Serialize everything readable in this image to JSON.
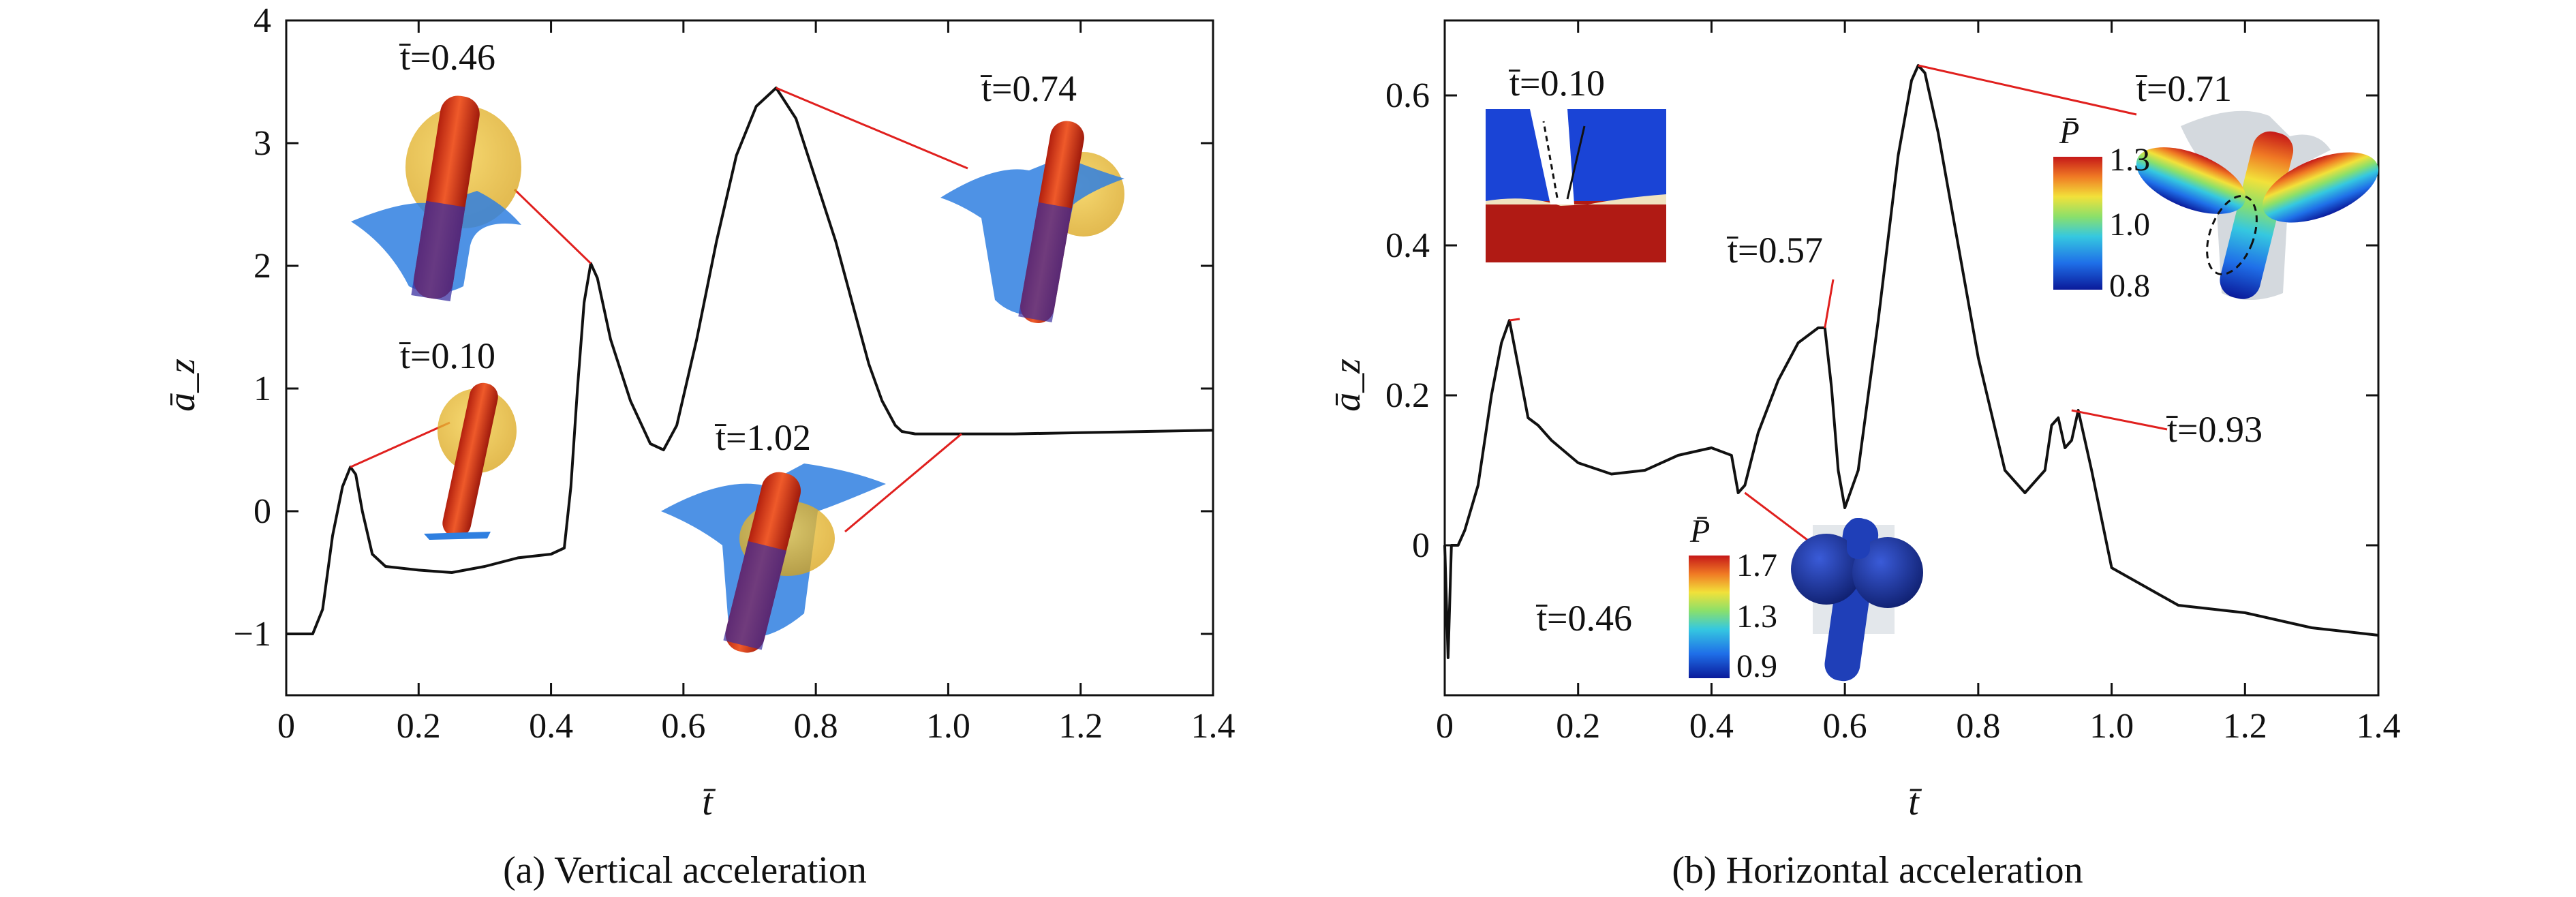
{
  "chart_data": [
    {
      "type": "line",
      "caption": "(a) Vertical acceleration",
      "xlabel": "t̄",
      "ylabel": "ā_z",
      "xlim": [
        0,
        1.4
      ],
      "ylim": [
        -1.5,
        4
      ],
      "xticks": [
        "0",
        "0.2",
        "0.4",
        "0.6",
        "0.8",
        "1.0",
        "1.2",
        "1.4"
      ],
      "yticks": [
        "−1",
        "0",
        "1",
        "2",
        "3",
        "4"
      ],
      "grid": false,
      "series": [
        {
          "x": [
            0,
            0.04,
            0.055,
            0.07,
            0.085,
            0.097,
            0.105,
            0.115,
            0.13,
            0.15,
            0.2,
            0.25,
            0.3,
            0.35,
            0.4,
            0.42,
            0.43,
            0.44,
            0.45,
            0.46,
            0.47,
            0.49,
            0.52,
            0.55,
            0.57,
            0.59,
            0.62,
            0.65,
            0.68,
            0.71,
            0.74,
            0.77,
            0.8,
            0.83,
            0.86,
            0.88,
            0.9,
            0.92,
            0.93,
            0.95,
            1.0,
            1.1,
            1.2,
            1.3,
            1.4
          ],
          "y": [
            -1.0,
            -1.0,
            -0.8,
            -0.2,
            0.2,
            0.36,
            0.3,
            0.0,
            -0.35,
            -0.45,
            -0.48,
            -0.5,
            -0.45,
            -0.38,
            -0.35,
            -0.3,
            0.2,
            1.0,
            1.7,
            2.02,
            1.9,
            1.4,
            0.9,
            0.55,
            0.5,
            0.7,
            1.4,
            2.2,
            2.9,
            3.3,
            3.45,
            3.2,
            2.7,
            2.2,
            1.6,
            1.2,
            0.9,
            0.7,
            0.65,
            0.63,
            0.63,
            0.63,
            0.64,
            0.65,
            0.66
          ]
        }
      ],
      "annotations": [
        {
          "label": "t̄=0.46",
          "x": 0.46,
          "y": 2.02
        },
        {
          "label": "t̄=0.74",
          "x": 0.74,
          "y": 3.45
        },
        {
          "label": "t̄=0.10",
          "x": 0.097,
          "y": 0.36
        },
        {
          "label": "t̄=1.02",
          "x": 1.02,
          "y": 0.63
        }
      ]
    },
    {
      "type": "line",
      "caption": "(b) Horizontal acceleration",
      "xlabel": "t̄",
      "ylabel": "ā_z",
      "xlim": [
        0,
        1.4
      ],
      "ylim": [
        -0.2,
        0.7
      ],
      "xticks": [
        "0",
        "0.2",
        "0.4",
        "0.6",
        "0.8",
        "1.0",
        "1.2",
        "1.4"
      ],
      "yticks": [
        "0",
        "0.2",
        "0.4",
        "0.6"
      ],
      "grid": false,
      "series": [
        {
          "x": [
            0,
            0.005,
            0.01,
            0.02,
            0.03,
            0.05,
            0.07,
            0.085,
            0.097,
            0.11,
            0.125,
            0.14,
            0.16,
            0.2,
            0.25,
            0.3,
            0.35,
            0.4,
            0.43,
            0.44,
            0.45,
            0.47,
            0.5,
            0.53,
            0.56,
            0.57,
            0.58,
            0.59,
            0.6,
            0.62,
            0.65,
            0.68,
            0.7,
            0.71,
            0.72,
            0.74,
            0.77,
            0.8,
            0.84,
            0.87,
            0.9,
            0.91,
            0.92,
            0.93,
            0.94,
            0.95,
            0.97,
            1.0,
            1.1,
            1.2,
            1.3,
            1.4
          ],
          "y": [
            0.0,
            -0.15,
            0.0,
            0.0,
            0.02,
            0.08,
            0.2,
            0.27,
            0.3,
            0.24,
            0.17,
            0.16,
            0.14,
            0.11,
            0.095,
            0.1,
            0.12,
            0.13,
            0.12,
            0.07,
            0.08,
            0.15,
            0.22,
            0.27,
            0.29,
            0.29,
            0.21,
            0.1,
            0.05,
            0.1,
            0.3,
            0.52,
            0.62,
            0.64,
            0.63,
            0.55,
            0.4,
            0.25,
            0.1,
            0.07,
            0.1,
            0.16,
            0.17,
            0.13,
            0.14,
            0.18,
            0.1,
            -0.03,
            -0.08,
            -0.09,
            -0.11,
            -0.12
          ]
        }
      ],
      "annotations": [
        {
          "label": "t̄=0.10",
          "x": 0.097,
          "y": 0.3
        },
        {
          "label": "t̄=0.57",
          "x": 0.57,
          "y": 0.29
        },
        {
          "label": "t̄=0.71",
          "x": 0.71,
          "y": 0.64
        },
        {
          "label": "t̄=0.93",
          "x": 0.94,
          "y": 0.18
        },
        {
          "label": "t̄=0.46",
          "x": 0.45,
          "y": 0.07
        }
      ],
      "colorbars": [
        {
          "title": "P̄",
          "ticks": [
            "1.3",
            "1.0",
            "0.8"
          ]
        },
        {
          "title": "P̄",
          "ticks": [
            "1.7",
            "1.3",
            "0.9"
          ]
        }
      ]
    }
  ],
  "colors": {
    "line": "#111111",
    "leader": "#e0201e",
    "rod": "#d93a1e",
    "bubble": "#e8b520",
    "splash": "#2f7fe0",
    "fluid_blue": "#1a44d6",
    "fluid_red": "#b01a14"
  }
}
